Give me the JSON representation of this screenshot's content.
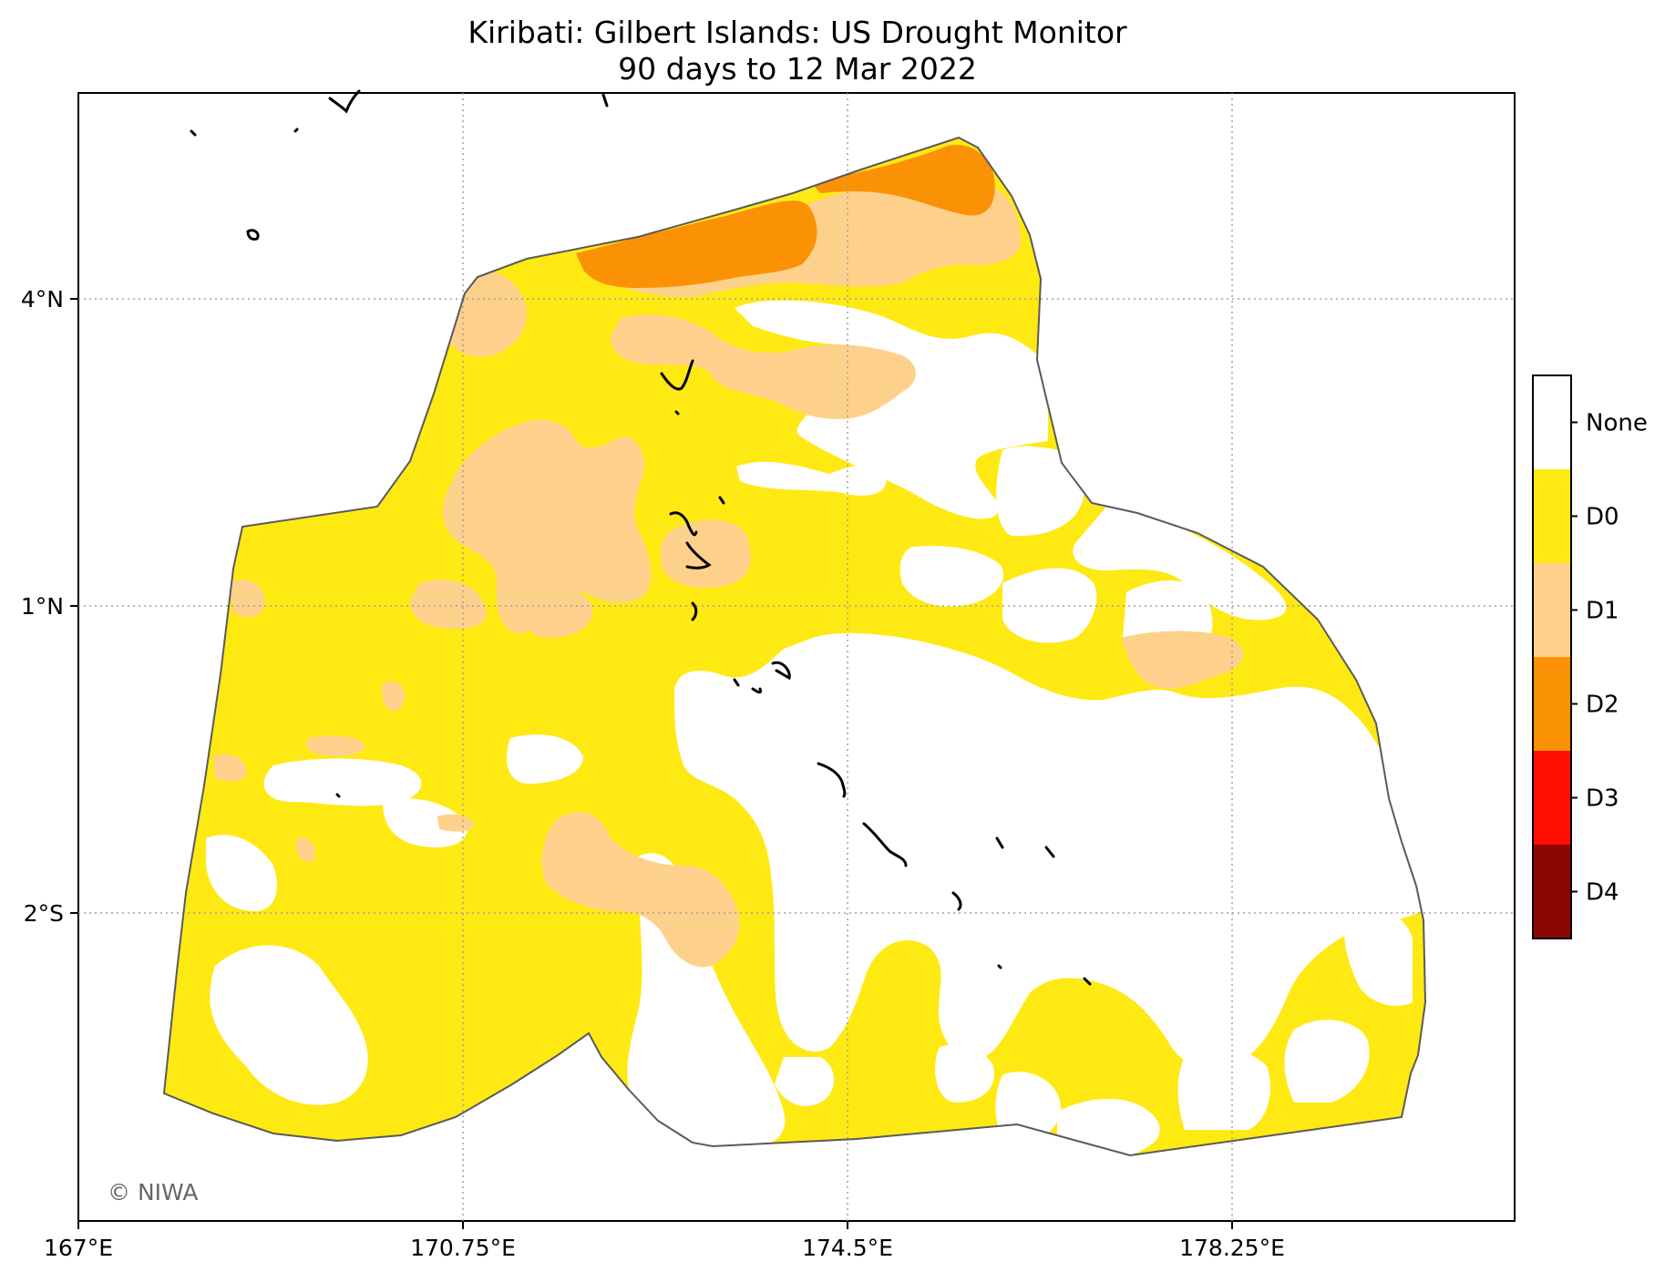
{
  "title": {
    "line1": "Kiribati: Gilbert Islands: US Drought Monitor",
    "line2": "90 days to 12 Mar 2022"
  },
  "axes": {
    "x_ticks": [
      "167°E",
      "170.75°E",
      "174.5°E",
      "178.25°E"
    ],
    "y_ticks": [
      "4°N",
      "1°N",
      "2°S"
    ],
    "grid": "dotted"
  },
  "legend": {
    "placement": "right",
    "items": [
      {
        "label": "None",
        "color": "#ffffff"
      },
      {
        "label": "D0",
        "color": "#ffe913"
      },
      {
        "label": "D1",
        "color": "#fdd18c"
      },
      {
        "label": "D2",
        "color": "#fb9105"
      },
      {
        "label": "D3",
        "color": "#fe0f02"
      },
      {
        "label": "D4",
        "color": "#8b0705"
      }
    ]
  },
  "credit": "© NIWA",
  "colors": {
    "boundary": "#5a5a5a",
    "gridline": "#a0a0a0",
    "islands": "#000000"
  }
}
